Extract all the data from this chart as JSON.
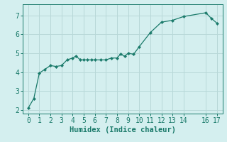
{
  "title": "",
  "xlabel": "Humidex (Indice chaleur)",
  "background_color": "#d4efef",
  "grid_color": "#b8d8d8",
  "line_color": "#1a7a6a",
  "marker_color": "#1a7a6a",
  "x": [
    0,
    0.5,
    1,
    1.5,
    2,
    2.5,
    3,
    3.5,
    4,
    4.3,
    4.7,
    5,
    5.3,
    5.7,
    6,
    6.5,
    7,
    7.5,
    8,
    8.3,
    8.7,
    9,
    9.5,
    10,
    11,
    12,
    13,
    14,
    16,
    16.5,
    17
  ],
  "y": [
    2.1,
    2.6,
    3.95,
    4.15,
    4.35,
    4.3,
    4.35,
    4.65,
    4.75,
    4.85,
    4.65,
    4.65,
    4.65,
    4.65,
    4.65,
    4.65,
    4.65,
    4.75,
    4.75,
    4.95,
    4.85,
    5.0,
    4.95,
    5.35,
    6.1,
    6.65,
    6.75,
    6.95,
    7.15,
    6.85,
    6.6
  ],
  "xlim": [
    -0.5,
    17.5
  ],
  "ylim": [
    1.8,
    7.6
  ],
  "xticks": [
    0,
    1,
    2,
    3,
    4,
    5,
    6,
    7,
    8,
    9,
    10,
    11,
    12,
    13,
    14,
    16,
    17
  ],
  "yticks": [
    2,
    3,
    4,
    5,
    6,
    7
  ],
  "fontsize_label": 7.5,
  "fontsize_tick": 7
}
